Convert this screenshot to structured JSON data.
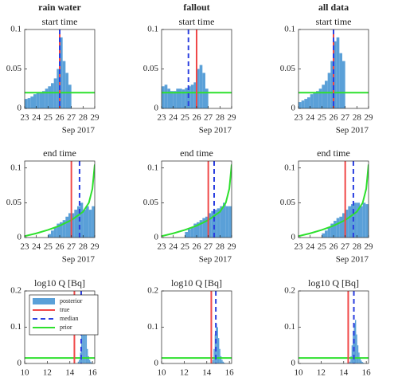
{
  "column_headers": [
    "rain water",
    "fallout",
    "all data"
  ],
  "colors": {
    "posterior": "#5aa0d8",
    "true": "#f04848",
    "median": "#2b3fe0",
    "prior": "#2ee02e"
  },
  "chart_data": [
    {
      "type": "histogram",
      "title": "start time",
      "xlabel": "Sep 2017",
      "xlim": [
        23,
        29
      ],
      "xticks": [
        23,
        24,
        25,
        26,
        27,
        28,
        29
      ],
      "ylim": [
        0,
        0.1
      ],
      "yticks": [
        0,
        0.05,
        0.1
      ],
      "bins": [
        23,
        23.25,
        23.5,
        23.75,
        24,
        24.25,
        24.5,
        24.75,
        25,
        25.25,
        25.5,
        25.75,
        26,
        26.25,
        26.5,
        26.75,
        27
      ],
      "counts": [
        0.012,
        0.013,
        0.015,
        0.018,
        0.02,
        0.02,
        0.022,
        0.025,
        0.028,
        0.032,
        0.038,
        0.05,
        0.09,
        0.06,
        0.045,
        0.03
      ],
      "true": 26.0,
      "median": 26.0,
      "prior": {
        "x": [
          23,
          29
        ],
        "y": [
          0.02,
          0.02
        ]
      }
    },
    {
      "type": "histogram",
      "title": "start time",
      "xlabel": "Sep 2017",
      "xlim": [
        23,
        29
      ],
      "xticks": [
        23,
        24,
        25,
        26,
        27,
        28,
        29
      ],
      "ylim": [
        0,
        0.1
      ],
      "yticks": [
        0,
        0.05,
        0.1
      ],
      "bins": [
        23,
        23.25,
        23.5,
        23.75,
        24,
        24.25,
        24.5,
        24.75,
        25,
        25.25,
        25.5,
        25.75,
        26,
        26.25,
        26.5,
        26.75,
        27
      ],
      "counts": [
        0.028,
        0.03,
        0.025,
        0.022,
        0.022,
        0.025,
        0.025,
        0.024,
        0.026,
        0.028,
        0.03,
        0.033,
        0.05,
        0.055,
        0.045,
        0.025
      ],
      "true": 26.0,
      "median": 25.3,
      "prior": {
        "x": [
          23,
          29
        ],
        "y": [
          0.02,
          0.02
        ]
      }
    },
    {
      "type": "histogram",
      "title": "start time",
      "xlabel": "Sep 2017",
      "xlim": [
        23,
        29
      ],
      "xticks": [
        23,
        24,
        25,
        26,
        27,
        28,
        29
      ],
      "ylim": [
        0,
        0.1
      ],
      "yticks": [
        0,
        0.05,
        0.1
      ],
      "bins": [
        23,
        23.25,
        23.5,
        23.75,
        24,
        24.25,
        24.5,
        24.75,
        25,
        25.25,
        25.5,
        25.75,
        26,
        26.25,
        26.5,
        26.75,
        27
      ],
      "counts": [
        0.008,
        0.01,
        0.012,
        0.014,
        0.018,
        0.02,
        0.022,
        0.025,
        0.03,
        0.035,
        0.045,
        0.06,
        0.085,
        0.09,
        0.07,
        0.06
      ],
      "true": 26.0,
      "median": 26.0,
      "prior": {
        "x": [
          23,
          29
        ],
        "y": [
          0.02,
          0.02
        ]
      }
    },
    {
      "type": "histogram",
      "title": "end time",
      "xlabel": "Sep 2017",
      "xlim": [
        23,
        29
      ],
      "xticks": [
        23,
        24,
        25,
        26,
        27,
        28,
        29
      ],
      "ylim": [
        0,
        0.11
      ],
      "yticks": [
        0,
        0.05,
        0.1
      ],
      "bins": [
        25,
        25.25,
        25.5,
        25.75,
        26,
        26.25,
        26.5,
        26.75,
        27,
        27.25,
        27.5,
        27.75,
        28,
        28.25,
        28.5,
        28.75,
        29
      ],
      "counts": [
        0.005,
        0.01,
        0.015,
        0.02,
        0.022,
        0.025,
        0.03,
        0.035,
        0.035,
        0.04,
        0.045,
        0.05,
        0.04,
        0.045,
        0.04,
        0.045
      ],
      "true": 27.0,
      "median": 27.7,
      "prior": {
        "x": [
          23,
          24,
          25,
          26,
          27,
          28,
          28.5,
          28.8,
          29
        ],
        "y": [
          0.002,
          0.006,
          0.011,
          0.017,
          0.025,
          0.037,
          0.05,
          0.07,
          0.105
        ]
      }
    },
    {
      "type": "histogram",
      "title": "end time",
      "xlabel": "Sep 2017",
      "xlim": [
        23,
        29
      ],
      "xticks": [
        23,
        24,
        25,
        26,
        27,
        28,
        29
      ],
      "ylim": [
        0,
        0.11
      ],
      "yticks": [
        0,
        0.05,
        0.1
      ],
      "bins": [
        25,
        25.25,
        25.5,
        25.75,
        26,
        26.25,
        26.5,
        26.75,
        27,
        27.25,
        27.5,
        27.75,
        28,
        28.25,
        28.5,
        28.75,
        29
      ],
      "counts": [
        0.008,
        0.012,
        0.015,
        0.02,
        0.022,
        0.025,
        0.028,
        0.03,
        0.035,
        0.038,
        0.04,
        0.042,
        0.045,
        0.05,
        0.045,
        0.045
      ],
      "true": 27.0,
      "median": 27.5,
      "prior": {
        "x": [
          23,
          24,
          25,
          26,
          27,
          28,
          28.5,
          28.8,
          29
        ],
        "y": [
          0.002,
          0.006,
          0.011,
          0.017,
          0.025,
          0.037,
          0.05,
          0.07,
          0.105
        ]
      }
    },
    {
      "type": "histogram",
      "title": "end time",
      "xlabel": "Sep 2017",
      "xlim": [
        23,
        29
      ],
      "xticks": [
        23,
        24,
        25,
        26,
        27,
        28,
        29
      ],
      "ylim": [
        0,
        0.11
      ],
      "yticks": [
        0,
        0.05,
        0.1
      ],
      "bins": [
        25,
        25.25,
        25.5,
        25.75,
        26,
        26.25,
        26.5,
        26.75,
        27,
        27.25,
        27.5,
        27.75,
        28,
        28.25,
        28.5,
        28.75,
        29
      ],
      "counts": [
        0.006,
        0.01,
        0.015,
        0.02,
        0.024,
        0.028,
        0.03,
        0.035,
        0.04,
        0.045,
        0.048,
        0.05,
        0.05,
        0.045,
        0.05,
        0.048
      ],
      "true": 27.0,
      "median": 27.7,
      "prior": {
        "x": [
          23,
          24,
          25,
          26,
          27,
          28,
          28.5,
          28.8,
          29
        ],
        "y": [
          0.002,
          0.006,
          0.011,
          0.017,
          0.025,
          0.037,
          0.05,
          0.07,
          0.105
        ]
      }
    },
    {
      "type": "histogram",
      "title": "log10 Q [Bq]",
      "xlim": [
        10,
        16.2
      ],
      "xticks": [
        10,
        12,
        14,
        16
      ],
      "ylim": [
        0,
        0.2
      ],
      "yticks": [
        0,
        0.1,
        0.2
      ],
      "bins": [
        14.4,
        14.5,
        14.6,
        14.7,
        14.8,
        14.9,
        15,
        15.1,
        15.2,
        15.3,
        15.4,
        15.5,
        15.6,
        15.7,
        15.8,
        15.9,
        16
      ],
      "counts": [
        0,
        0,
        0,
        0.005,
        0.01,
        0.03,
        0.08,
        0.11,
        0.13,
        0.12,
        0.08,
        0.04,
        0.02,
        0.01,
        0.005,
        0.002
      ],
      "true": 14.4,
      "median": 15.0,
      "prior": {
        "x": [
          10,
          16.2
        ],
        "y": [
          0.015,
          0.015
        ]
      },
      "legend": {
        "position": "upper left",
        "labels": [
          "posterior",
          "true",
          "median",
          "prior"
        ]
      }
    },
    {
      "type": "histogram",
      "title": "log10 Q [Bq]",
      "xlim": [
        10,
        16.2
      ],
      "xticks": [
        10,
        12,
        14,
        16
      ],
      "ylim": [
        0,
        0.2
      ],
      "yticks": [
        0,
        0.1,
        0.2
      ],
      "bins": [
        14.4,
        14.5,
        14.6,
        14.7,
        14.8,
        14.9,
        15,
        15.1,
        15.2,
        15.3,
        15.4,
        15.5,
        15.6,
        15.7,
        15.8,
        15.9,
        16
      ],
      "counts": [
        0.002,
        0.01,
        0.04,
        0.08,
        0.11,
        0.1,
        0.07,
        0.04,
        0.02,
        0.01,
        0.005,
        0.002,
        0,
        0,
        0,
        0
      ],
      "true": 14.4,
      "median": 14.8,
      "prior": {
        "x": [
          10,
          16.2
        ],
        "y": [
          0.015,
          0.015
        ]
      }
    },
    {
      "type": "histogram",
      "title": "log10 Q [Bq]",
      "xlim": [
        10,
        16.2
      ],
      "xticks": [
        10,
        12,
        14,
        16
      ],
      "ylim": [
        0,
        0.2
      ],
      "yticks": [
        0,
        0.1,
        0.2
      ],
      "bins": [
        14.4,
        14.5,
        14.6,
        14.7,
        14.8,
        14.9,
        15,
        15.1,
        15.2,
        15.3,
        15.4,
        15.5,
        15.6,
        15.7,
        15.8,
        15.9,
        16
      ],
      "counts": [
        0,
        0.005,
        0.02,
        0.05,
        0.09,
        0.11,
        0.12,
        0.08,
        0.05,
        0.03,
        0.015,
        0.008,
        0.004,
        0.002,
        0,
        0
      ],
      "true": 14.4,
      "median": 14.9,
      "prior": {
        "x": [
          10,
          16.2
        ],
        "y": [
          0.015,
          0.015
        ]
      }
    }
  ]
}
